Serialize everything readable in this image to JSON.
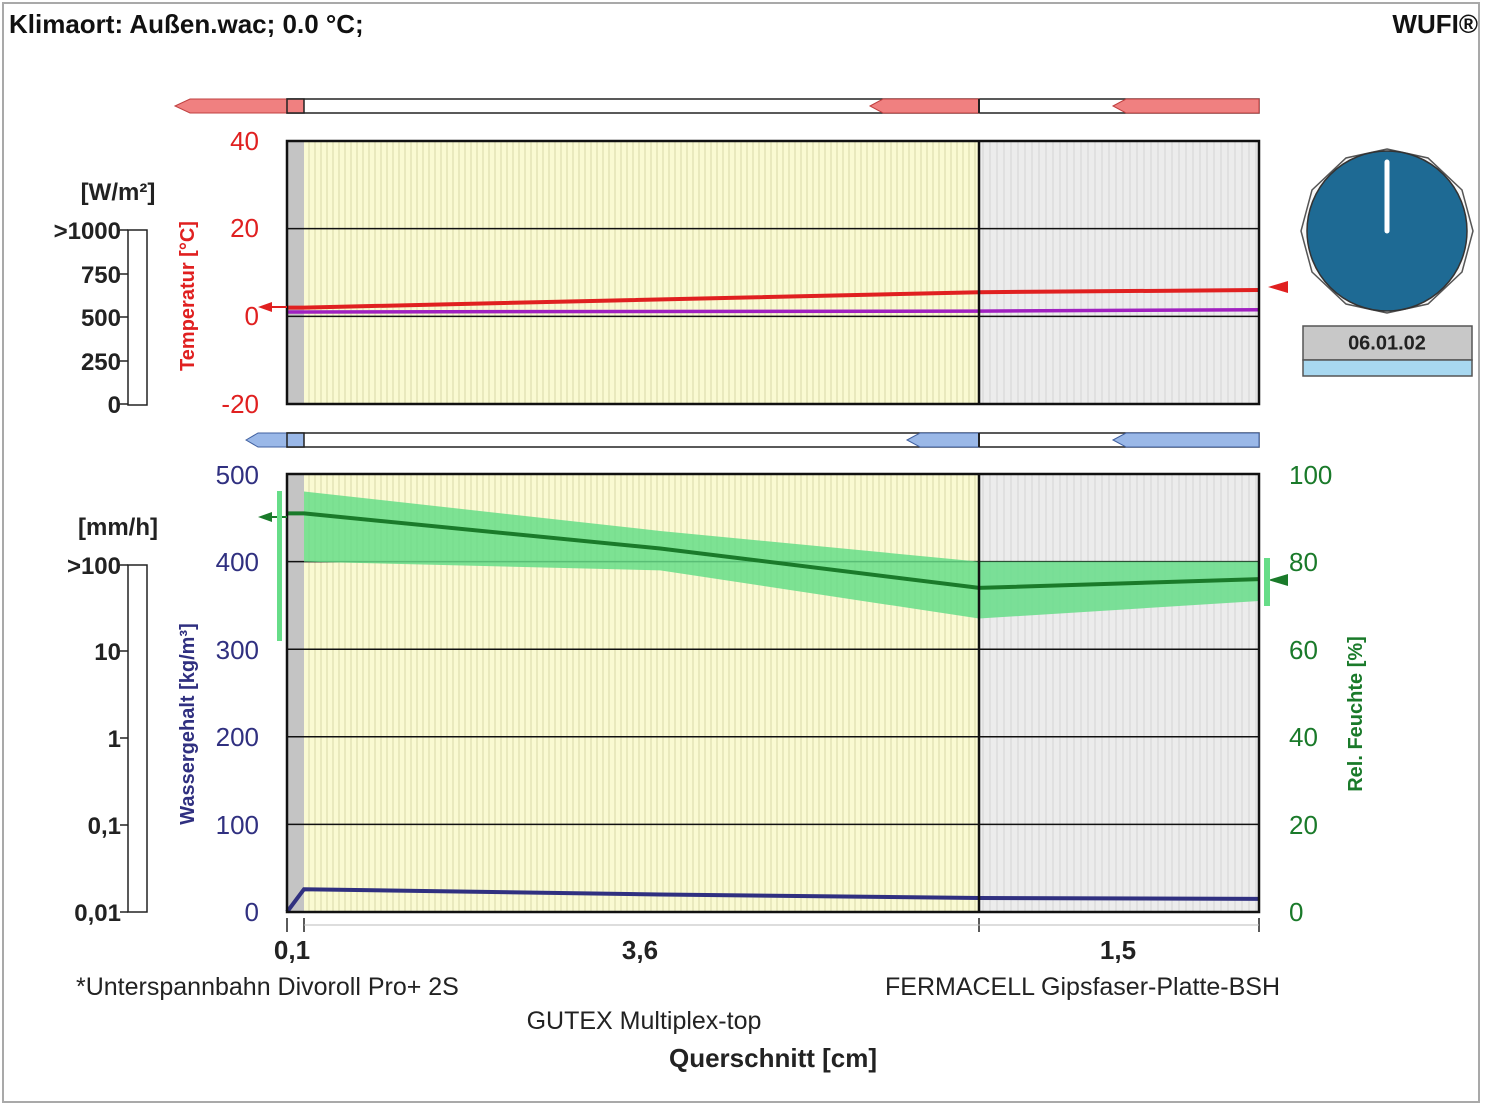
{
  "header": {
    "title": "Klimaort: Außen.wac; 0.0 °C;",
    "brand": "WUFI®"
  },
  "date": "06.01.02",
  "colors": {
    "temperature": "#e02020",
    "dewpoint": "#a020c0",
    "water": "#303080",
    "humidity": "#1a7a2a",
    "humidity_band": "#66dd88",
    "layer_main": "#fafad2",
    "layer_board": "#ececec",
    "layer_membrane": "#c4c4c4",
    "dial": "#1e6a94"
  },
  "left_scales": {
    "heat_unit": "[W/m²]",
    "heat_ticks": [
      ">1000",
      "750",
      "500",
      "250",
      "0"
    ],
    "rain_unit": "[mm/h]",
    "rain_ticks": [
      ">100",
      "10",
      "1",
      "0,1",
      "0,01"
    ]
  },
  "chart_data": [
    {
      "type": "line",
      "ylabel": "Temperatur [°C]",
      "ylim": [
        -20,
        40
      ],
      "yticks": [
        "40",
        "20",
        "0",
        "-20"
      ],
      "x": [
        0,
        0.1,
        3.7,
        5.2
      ],
      "series": [
        {
          "values": [
            2.0,
            2.0,
            5.5,
            6.0
          ]
        },
        {
          "values": [
            1.0,
            1.0,
            1.2,
            1.5
          ]
        }
      ]
    },
    {
      "type": "line",
      "ylabel": "Wassergehalt [kg/m³]",
      "ylabel2": "Rel. Feuchte [%]",
      "ylim": [
        0,
        500
      ],
      "ylim2": [
        0,
        100
      ],
      "yticks": [
        "500",
        "400",
        "300",
        "200",
        "100",
        "0"
      ],
      "yticks2": [
        "100",
        "80",
        "60",
        "40",
        "20",
        "0"
      ],
      "xlabel": "Querschnitt [cm]",
      "layers": [
        {
          "thickness": "0,1",
          "name": "*Unterspannbahn Divoroll Pro+ 2S"
        },
        {
          "thickness": "3,6",
          "name": "GUTEX Multiplex-top"
        },
        {
          "thickness": "1,5",
          "name": "FERMACELL Gipsfaser-Platte-BSH"
        }
      ],
      "x": [
        0,
        0.1,
        2.0,
        3.7,
        5.2
      ],
      "series": [
        {
          "axis": "left",
          "values": [
            0,
            26,
            20,
            16,
            15
          ]
        },
        {
          "axis": "right",
          "values": [
            91,
            91,
            83,
            74,
            76
          ]
        }
      ],
      "band": {
        "axis": "right",
        "x": [
          0.1,
          2.0,
          3.7,
          5.2
        ],
        "upper": [
          96,
          87,
          80,
          80
        ],
        "lower": [
          80,
          78,
          67,
          71
        ]
      }
    }
  ]
}
